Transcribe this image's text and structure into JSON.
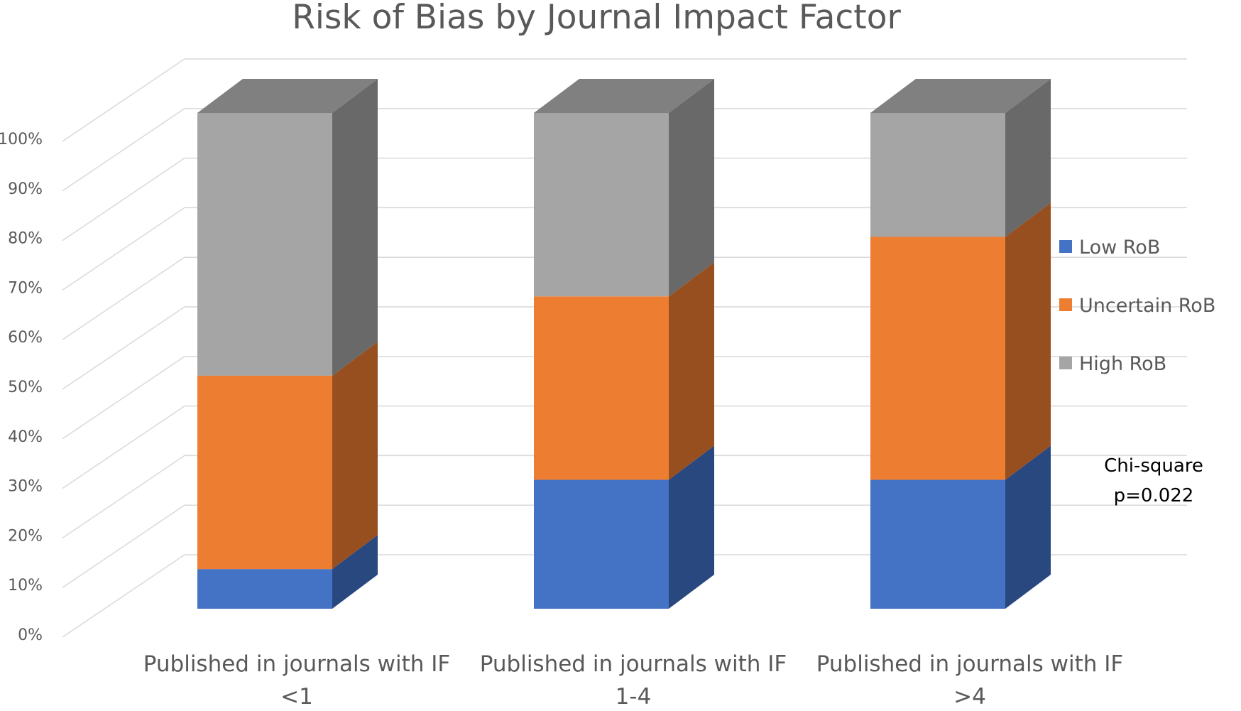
{
  "chart_data": {
    "type": "bar",
    "stacked": true,
    "percent_stacked": true,
    "three_d": true,
    "title": "Risk of Bias by Journal Impact Factor",
    "categories": [
      [
        "Published in journals with IF",
        "<1"
      ],
      [
        "Published in journals with IF",
        "1-4"
      ],
      [
        "Published in journals with IF",
        ">4"
      ]
    ],
    "series": [
      {
        "name": "Low RoB",
        "values": [
          8,
          26,
          26
        ],
        "color": "#4472C4",
        "side_color": "#2A4880",
        "top_color": "#2A4880"
      },
      {
        "name": "Uncertain RoB",
        "values": [
          39,
          37,
          49
        ],
        "color": "#ED7D31",
        "side_color": "#974F1F",
        "top_color": "#974F1F"
      },
      {
        "name": "High RoB",
        "values": [
          53,
          37,
          25
        ],
        "color": "#A5A5A5",
        "side_color": "#696969",
        "top_color": "#808080"
      }
    ],
    "y_ticks": [
      "0%",
      "10%",
      "20%",
      "30%",
      "40%",
      "50%",
      "60%",
      "70%",
      "80%",
      "90%",
      "100%"
    ],
    "ylim": [
      0,
      100
    ],
    "grid": true,
    "legend_position": "right",
    "annotation": [
      "Chi-square",
      "p=0.022"
    ]
  }
}
